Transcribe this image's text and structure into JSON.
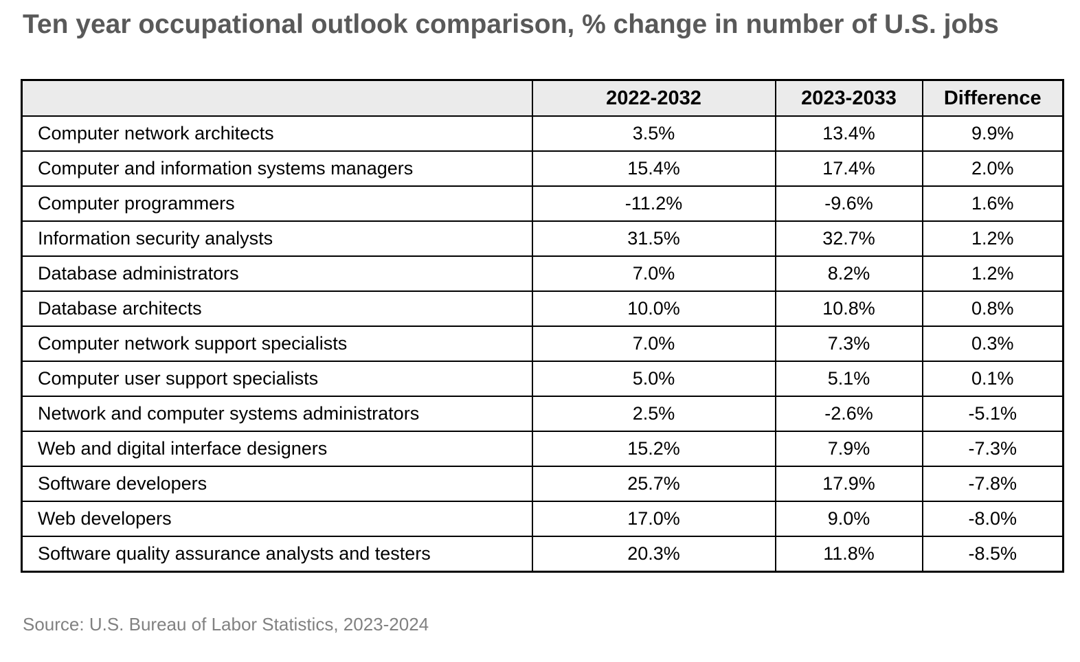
{
  "title": "Ten year occupational outlook comparison, % change in number of U.S. jobs",
  "source_note": "Source: U.S. Bureau of Labor Statistics, 2023-2024",
  "colors": {
    "title_text": "#595959",
    "source_text": "#818181",
    "header_background": "#ebebeb",
    "border": "#000000",
    "cell_text": "#000000"
  },
  "chart_data": {
    "type": "table",
    "title": "Ten year occupational outlook comparison, % change in number of U.S. jobs",
    "columns": [
      "",
      "2022-2032",
      "2023-2033",
      "Difference"
    ],
    "rows": [
      {
        "occupation": "Computer network architects",
        "y2022_2032": "3.5%",
        "y2023_2033": "13.4%",
        "difference": "9.9%"
      },
      {
        "occupation": "Computer and information systems managers",
        "y2022_2032": "15.4%",
        "y2023_2033": "17.4%",
        "difference": "2.0%"
      },
      {
        "occupation": "Computer programmers",
        "y2022_2032": "-11.2%",
        "y2023_2033": "-9.6%",
        "difference": "1.6%"
      },
      {
        "occupation": "Information security analysts",
        "y2022_2032": "31.5%",
        "y2023_2033": "32.7%",
        "difference": "1.2%"
      },
      {
        "occupation": "Database administrators",
        "y2022_2032": "7.0%",
        "y2023_2033": "8.2%",
        "difference": "1.2%"
      },
      {
        "occupation": "Database architects",
        "y2022_2032": "10.0%",
        "y2023_2033": "10.8%",
        "difference": "0.8%"
      },
      {
        "occupation": "Computer network support specialists",
        "y2022_2032": "7.0%",
        "y2023_2033": "7.3%",
        "difference": "0.3%"
      },
      {
        "occupation": "Computer user support specialists",
        "y2022_2032": "5.0%",
        "y2023_2033": "5.1%",
        "difference": "0.1%"
      },
      {
        "occupation": "Network and computer systems administrators",
        "y2022_2032": "2.5%",
        "y2023_2033": "-2.6%",
        "difference": "-5.1%"
      },
      {
        "occupation": "Web and digital interface designers",
        "y2022_2032": "15.2%",
        "y2023_2033": "7.9%",
        "difference": "-7.3%"
      },
      {
        "occupation": "Software developers",
        "y2022_2032": "25.7%",
        "y2023_2033": "17.9%",
        "difference": "-7.8%"
      },
      {
        "occupation": "Web developers",
        "y2022_2032": "17.0%",
        "y2023_2033": "9.0%",
        "difference": "-8.0%"
      },
      {
        "occupation": "Software quality assurance analysts and testers",
        "y2022_2032": "20.3%",
        "y2023_2033": "11.8%",
        "difference": "-8.5%"
      }
    ]
  }
}
